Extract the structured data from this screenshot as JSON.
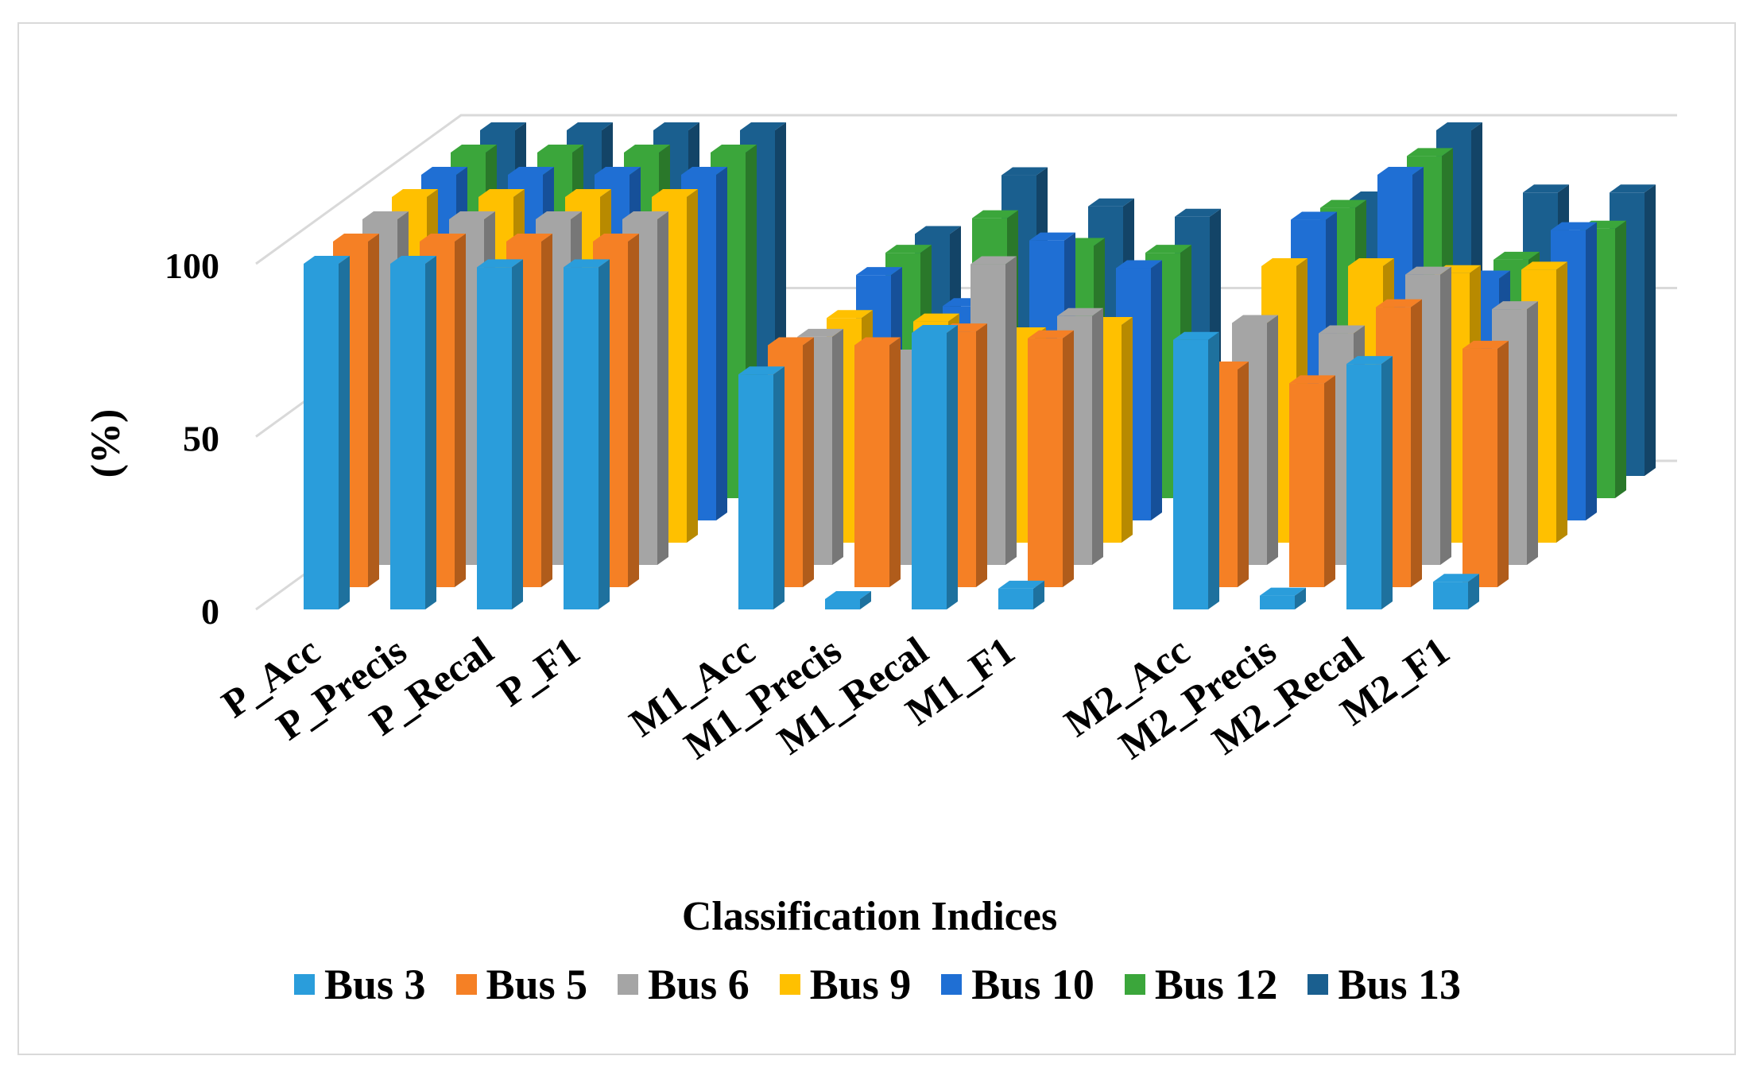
{
  "chart_data": {
    "type": "bar",
    "subtype": "3d-clustered-column",
    "title": "",
    "xlabel": "Classification Indices",
    "ylabel": "(%)",
    "ylim": [
      0,
      100
    ],
    "yticks": [
      "0",
      "50",
      "100"
    ],
    "categories": [
      "P_Acc",
      "P_Precis",
      "P_Recal",
      "P_F1",
      "M1_Acc",
      "M1_Precis",
      "M1_Recal",
      "M1_F1",
      "M2_Acc",
      "M2_Precis",
      "M2_Recal",
      "M2_F1"
    ],
    "legend_position": "bottom",
    "series": [
      {
        "name": "Bus 3",
        "color": "#2a9ddb",
        "values": [
          100,
          100,
          99,
          99,
          68,
          3,
          80,
          6,
          78,
          4,
          71,
          8
        ]
      },
      {
        "name": "Bus 5",
        "color": "#f58025",
        "values": [
          100,
          100,
          100,
          100,
          70,
          70,
          74,
          72,
          63,
          59,
          81,
          69
        ]
      },
      {
        "name": "Bus 6",
        "color": "#a5a5a5",
        "values": [
          100,
          100,
          100,
          100,
          66,
          60,
          87,
          72,
          70,
          67,
          84,
          74
        ]
      },
      {
        "name": "Bus 9",
        "color": "#ffc000",
        "values": [
          100,
          100,
          100,
          100,
          65,
          64,
          60,
          63,
          80,
          80,
          78,
          79
        ]
      },
      {
        "name": "Bus 10",
        "color": "#1f6fd4",
        "values": [
          100,
          100,
          100,
          100,
          71,
          62,
          81,
          73,
          87,
          100,
          70,
          84
        ]
      },
      {
        "name": "Bus 12",
        "color": "#3ba63b",
        "values": [
          100,
          100,
          100,
          100,
          71,
          81,
          73,
          71,
          84,
          99,
          69,
          78
        ]
      },
      {
        "name": "Bus 13",
        "color": "#1a5f8f",
        "values": [
          100,
          100,
          100,
          100,
          70,
          87,
          78,
          75,
          80,
          100,
          82,
          82
        ]
      }
    ]
  }
}
